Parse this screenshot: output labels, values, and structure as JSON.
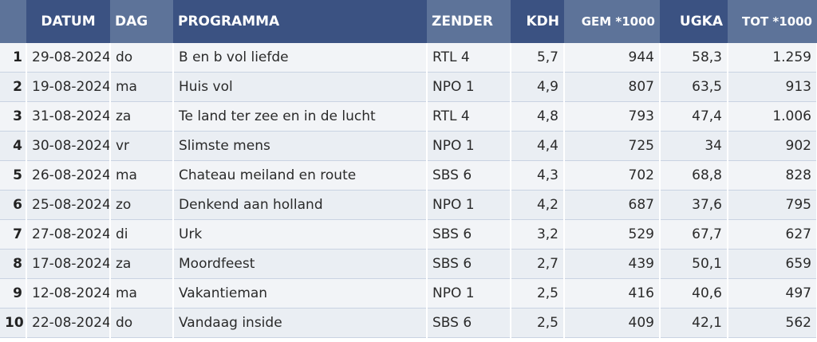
{
  "headers": {
    "datum": "DATUM",
    "dag": "DAG",
    "programma": "PROGRAMMA",
    "zender": "ZENDER",
    "kdh": "KDH",
    "gem": "GEM *1000",
    "ugka": "UGKA",
    "tot": "TOT *1000"
  },
  "rows": [
    {
      "idx": "1",
      "datum": "29-08-2024",
      "dag": "do",
      "programma": "B en b vol liefde",
      "zender": "RTL 4",
      "kdh": "5,7",
      "gem": "944",
      "ugka": "58,3",
      "tot": "1.259"
    },
    {
      "idx": "2",
      "datum": "19-08-2024",
      "dag": "ma",
      "programma": "Huis vol",
      "zender": "NPO 1",
      "kdh": "4,9",
      "gem": "807",
      "ugka": "63,5",
      "tot": "913"
    },
    {
      "idx": "3",
      "datum": "31-08-2024",
      "dag": "za",
      "programma": "Te land ter zee en in de lucht",
      "zender": "RTL 4",
      "kdh": "4,8",
      "gem": "793",
      "ugka": "47,4",
      "tot": "1.006"
    },
    {
      "idx": "4",
      "datum": "30-08-2024",
      "dag": "vr",
      "programma": "Slimste mens",
      "zender": "NPO 1",
      "kdh": "4,4",
      "gem": "725",
      "ugka": "34",
      "tot": "902"
    },
    {
      "idx": "5",
      "datum": "26-08-2024",
      "dag": "ma",
      "programma": "Chateau meiland en route",
      "zender": "SBS 6",
      "kdh": "4,3",
      "gem": "702",
      "ugka": "68,8",
      "tot": "828"
    },
    {
      "idx": "6",
      "datum": "25-08-2024",
      "dag": "zo",
      "programma": "Denkend aan holland",
      "zender": "NPO 1",
      "kdh": "4,2",
      "gem": "687",
      "ugka": "37,6",
      "tot": "795"
    },
    {
      "idx": "7",
      "datum": "27-08-2024",
      "dag": "di",
      "programma": "Urk",
      "zender": "SBS 6",
      "kdh": "3,2",
      "gem": "529",
      "ugka": "67,7",
      "tot": "627"
    },
    {
      "idx": "8",
      "datum": "17-08-2024",
      "dag": "za",
      "programma": "Moordfeest",
      "zender": "SBS 6",
      "kdh": "2,7",
      "gem": "439",
      "ugka": "50,1",
      "tot": "659"
    },
    {
      "idx": "9",
      "datum": "12-08-2024",
      "dag": "ma",
      "programma": "Vakantieman",
      "zender": "NPO 1",
      "kdh": "2,5",
      "gem": "416",
      "ugka": "40,6",
      "tot": "497"
    },
    {
      "idx": "10",
      "datum": "22-08-2024",
      "dag": "do",
      "programma": "Vandaag inside",
      "zender": "SBS 6",
      "kdh": "2,5",
      "gem": "409",
      "ugka": "42,1",
      "tot": "562"
    }
  ]
}
